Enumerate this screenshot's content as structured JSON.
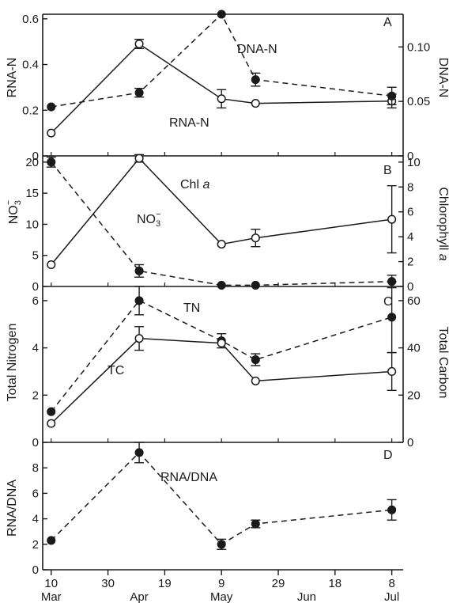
{
  "chart_data": [
    {
      "panel": "A",
      "type": "line",
      "xlabel": "",
      "ylabel": "RNA-N",
      "y2label": "DNA-N",
      "ylim": [
        0,
        0.62
      ],
      "y2lim": [
        0,
        0.13
      ],
      "yticks": [
        0,
        0.2,
        0.4,
        0.6
      ],
      "yticklabels": [
        "0",
        "0.2",
        "0.4",
        "0.6"
      ],
      "y2ticks": [
        0,
        0.05,
        0.1
      ],
      "y2ticklabels": [
        "0",
        "0.05",
        "0.10"
      ],
      "series": [
        {
          "name": "RNA-N",
          "axis": "left",
          "marker": "open",
          "style": "solid",
          "x": [
            "Mar 10",
            "Apr 10",
            "May 9",
            "May 21",
            "Jul 8"
          ],
          "values": [
            0.1,
            0.49,
            0.25,
            0.23,
            0.24
          ],
          "err": [
            0,
            0.02,
            0.04,
            0,
            0.03
          ]
        },
        {
          "name": "DNA-N",
          "axis": "right",
          "marker": "filled",
          "style": "dashed",
          "x": [
            "Mar 10",
            "Apr 10",
            "May 9",
            "May 21",
            "Jul 8"
          ],
          "values": [
            0.045,
            0.058,
            0.13,
            0.07,
            0.055
          ],
          "err": [
            0,
            0.004,
            0,
            0.006,
            0.008
          ]
        }
      ]
    },
    {
      "panel": "B",
      "type": "line",
      "ylabel": "NO3⁻",
      "y2label": "Chlorophyll a",
      "ylim": [
        0,
        21
      ],
      "y2lim": [
        0,
        10.5
      ],
      "yticks": [
        0,
        5,
        10,
        15,
        20
      ],
      "yticklabels": [
        "0",
        "5",
        "10",
        "15",
        "20"
      ],
      "y2ticks": [
        0,
        2,
        4,
        6,
        8,
        10
      ],
      "y2ticklabels": [
        "0",
        "2",
        "4",
        "6",
        "8",
        "10"
      ],
      "series": [
        {
          "name": "Chl a",
          "axis": "right",
          "marker": "open",
          "style": "solid",
          "x": [
            "Mar 10",
            "Apr 10",
            "May 9",
            "May 21",
            "Jul 8"
          ],
          "values": [
            1.75,
            10.3,
            3.4,
            3.9,
            5.4
          ],
          "err": [
            0,
            0.3,
            0,
            0.7,
            2.7
          ]
        },
        {
          "name": "NO3⁻",
          "axis": "left",
          "marker": "filled",
          "style": "dashed",
          "x": [
            "Mar 10",
            "Apr 10",
            "May 9",
            "May 21",
            "Jul 8"
          ],
          "values": [
            20,
            2.5,
            0.2,
            0.2,
            0.8
          ],
          "err": [
            0.8,
            1,
            0,
            0,
            1
          ]
        }
      ]
    },
    {
      "panel": "C",
      "type": "line",
      "ylabel": "Total Nitrogen",
      "y2label": "Total Carbon",
      "ylim": [
        0,
        6.6
      ],
      "y2lim": [
        0,
        66
      ],
      "yticks": [
        0,
        2,
        4,
        6
      ],
      "yticklabels": [
        "0",
        "2",
        "4",
        "6"
      ],
      "y2ticks": [
        0,
        20,
        40,
        60
      ],
      "y2ticklabels": [
        "0",
        "20",
        "40",
        "60"
      ],
      "series": [
        {
          "name": "TN",
          "axis": "left",
          "marker": "filled",
          "style": "dashed",
          "x": [
            "Mar 10",
            "Apr 10",
            "May 9",
            "May 21",
            "Jul 8"
          ],
          "values": [
            1.3,
            6.0,
            4.3,
            3.5,
            5.3
          ],
          "err": [
            0,
            0.6,
            0.3,
            0.25,
            1.5
          ]
        },
        {
          "name": "TC",
          "axis": "right",
          "marker": "open",
          "style": "solid",
          "x": [
            "Mar 10",
            "Apr 10",
            "May 9",
            "May 21",
            "Jul 8"
          ],
          "values": [
            8,
            44,
            42,
            26,
            30
          ],
          "err": [
            0,
            5,
            0,
            0,
            8
          ]
        }
      ]
    },
    {
      "panel": "D",
      "type": "line",
      "ylabel": "RNA/DNA",
      "ylim": [
        0,
        10
      ],
      "yticks": [
        0,
        2,
        4,
        6,
        8
      ],
      "yticklabels": [
        "0",
        "2",
        "4",
        "6",
        "8"
      ],
      "series": [
        {
          "name": "RNA/DNA",
          "axis": "left",
          "marker": "filled",
          "style": "dashed",
          "x": [
            "Mar 10",
            "Apr 10",
            "May 9",
            "May 21",
            "Jul 8"
          ],
          "values": [
            2.3,
            9.2,
            2.0,
            3.6,
            4.7
          ],
          "err": [
            0,
            0.8,
            0.4,
            0.3,
            0.8
          ]
        }
      ]
    }
  ],
  "x_axis": {
    "tick_labels": [
      "10",
      "30",
      "19",
      "9",
      "29",
      "18",
      "8"
    ],
    "tick_dates": [
      "Mar 10",
      "Mar 30",
      "Apr 19",
      "May 9",
      "May 29",
      "Jun 18",
      "Jul 8"
    ],
    "month_labels": [
      "Mar",
      "Apr",
      "May",
      "Jun",
      "Jul"
    ],
    "month_dates": [
      "Mar 10",
      "Apr 10",
      "May 9",
      "Jun 8",
      "Jul 8"
    ]
  },
  "panel_letters": [
    "A",
    "B",
    "C",
    "D"
  ],
  "annotations": {
    "dna_n": "DNA-N",
    "rna_n": "RNA-N",
    "chl_a": "Chl a",
    "chl_a_base": "Chl ",
    "chl_a_italic": "a",
    "no3": "NO",
    "no3_sub": "3",
    "no3_sup": "−",
    "tn": "TN",
    "tc": "TC",
    "rna_dna": "RNA/DNA"
  },
  "axis_titles": {
    "a_left": "RNA-N",
    "a_right": "DNA-N",
    "b_left_base": "NO",
    "b_left_sub": "3",
    "b_left_sup": "−",
    "b_right_base": "Chlorophyll ",
    "b_right_italic": "a",
    "c_left": "Total Nitrogen",
    "c_right": "Total Carbon",
    "d_left": "RNA/DNA"
  }
}
